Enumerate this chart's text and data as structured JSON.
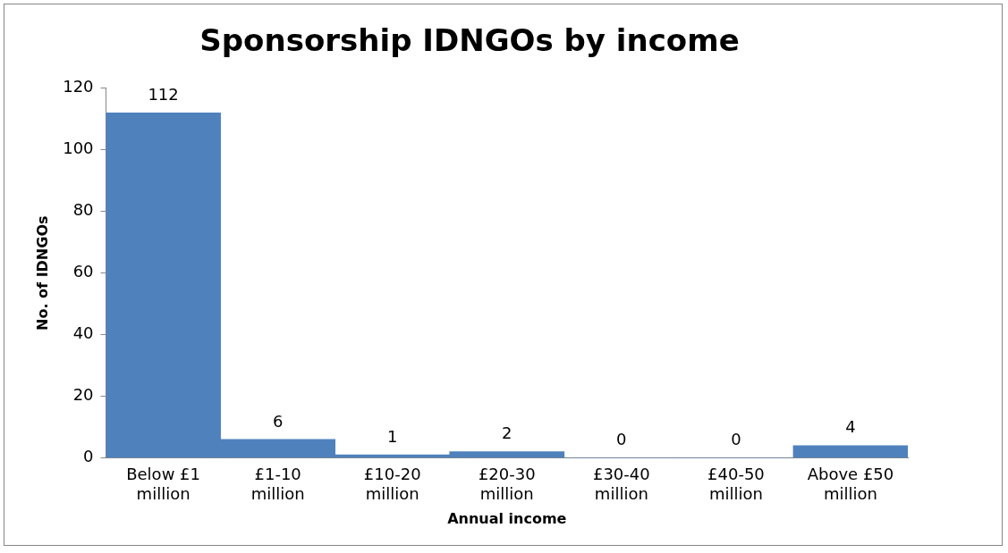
{
  "chart_data": {
    "type": "bar",
    "title": "Sponsorship IDNGOs by income",
    "xlabel": "Annual income",
    "ylabel": "No. of IDNGOs",
    "categories": [
      "Below £1 million",
      "£1-10 million",
      "£10-20 million",
      "£20-30 million",
      "£30-40 million",
      "£40-50 million",
      "Above £50 million"
    ],
    "values": [
      112,
      6,
      1,
      2,
      0,
      0,
      4
    ],
    "color": "#4f81bd",
    "ylim": [
      0,
      120
    ],
    "yticks": [
      0,
      20,
      40,
      60,
      80,
      100,
      120
    ],
    "grid": false,
    "legend": false,
    "data_labels": true
  }
}
